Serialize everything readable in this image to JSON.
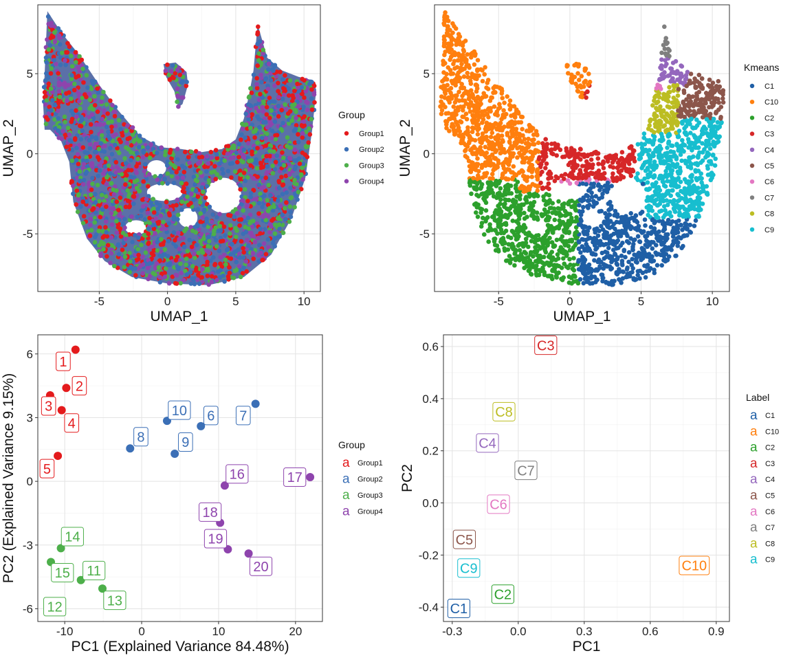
{
  "colors": {
    "group": {
      "Group1": "#E41A1C",
      "Group2": "#3B6FB6",
      "Group3": "#4DAF4A",
      "Group4": "#8E44AD"
    },
    "kmeans": {
      "C1": "#1F5FA6",
      "C10": "#FF7F0E",
      "C2": "#2CA02C",
      "C3": "#D62728",
      "C4": "#9467BD",
      "C5": "#8C564B",
      "C6": "#E377C2",
      "C7": "#7F7F7F",
      "C8": "#BCBD22",
      "C9": "#17BECF"
    }
  },
  "chart_data": [
    {
      "type": "scatter",
      "title": "",
      "xlabel": "UMAP_1",
      "ylabel": "UMAP_2",
      "xlim": [
        -9.5,
        11.2
      ],
      "ylim": [
        -8.6,
        9.3
      ],
      "x_ticks": [
        -5,
        0,
        5,
        10
      ],
      "y_ticks": [
        -5,
        0,
        5
      ],
      "grid": true,
      "legend": {
        "title": "Group",
        "entries": [
          "Group1",
          "Group2",
          "Group3",
          "Group4"
        ],
        "position": "right"
      },
      "density_regions": "UMAP embedding of single cells colored by sample group (dense overlapping points)"
    },
    {
      "type": "scatter",
      "title": "",
      "xlabel": "UMAP_1",
      "ylabel": "UMAP_2",
      "xlim": [
        -9.5,
        11.2
      ],
      "ylim": [
        -8.6,
        9.3
      ],
      "x_ticks": [
        -5,
        0,
        5,
        10
      ],
      "y_ticks": [
        -5,
        0,
        5
      ],
      "grid": true,
      "legend": {
        "title": "Kmeans",
        "entries": [
          "C1",
          "C10",
          "C2",
          "C3",
          "C4",
          "C5",
          "C6",
          "C7",
          "C8",
          "C9"
        ],
        "position": "right"
      }
    },
    {
      "type": "scatter",
      "title": "",
      "xlabel": "PC1 (Explained Variance 84.48%)",
      "ylabel": "PC2 (Explained Variance 9.15%)",
      "xlim": [
        -13.5,
        23.5
      ],
      "ylim": [
        -6.6,
        6.9
      ],
      "x_ticks": [
        -10,
        0,
        10,
        20
      ],
      "y_ticks": [
        -6,
        -3,
        0,
        3,
        6
      ],
      "grid": true,
      "legend": {
        "title": "Group",
        "entries": [
          "Group1",
          "Group2",
          "Group3",
          "Group4"
        ],
        "position": "right"
      },
      "points": [
        {
          "label": "1",
          "group": "Group1",
          "x": -8.6,
          "y": 6.2,
          "lx": -10.2,
          "ly": 5.65
        },
        {
          "label": "2",
          "group": "Group1",
          "x": -9.8,
          "y": 4.4,
          "lx": -8.1,
          "ly": 4.5
        },
        {
          "label": "3",
          "group": "Group1",
          "x": -11.9,
          "y": 4.05,
          "lx": -12.1,
          "ly": 3.55
        },
        {
          "label": "4",
          "group": "Group1",
          "x": -10.4,
          "y": 3.35,
          "lx": -9.1,
          "ly": 2.75
        },
        {
          "label": "5",
          "group": "Group1",
          "x": -10.9,
          "y": 1.2,
          "lx": -12.3,
          "ly": 0.6
        },
        {
          "label": "6",
          "group": "Group2",
          "x": 7.7,
          "y": 2.6,
          "lx": 9.0,
          "ly": 3.1
        },
        {
          "label": "7",
          "group": "Group2",
          "x": 14.8,
          "y": 3.65,
          "lx": 13.2,
          "ly": 3.1
        },
        {
          "label": "8",
          "group": "Group2",
          "x": -1.5,
          "y": 1.55,
          "lx": -0.1,
          "ly": 2.1
        },
        {
          "label": "9",
          "group": "Group2",
          "x": 4.3,
          "y": 1.3,
          "lx": 5.7,
          "ly": 1.85
        },
        {
          "label": "10",
          "group": "Group2",
          "x": 3.3,
          "y": 2.85,
          "lx": 4.9,
          "ly": 3.35
        },
        {
          "label": "11",
          "group": "Group3",
          "x": -7.9,
          "y": -4.65,
          "lx": -6.2,
          "ly": -4.2
        },
        {
          "label": "12",
          "group": "Group3",
          "x": -11.5,
          "y": -5.9,
          "lx": -11.3,
          "ly": -5.9
        },
        {
          "label": "13",
          "group": "Group3",
          "x": -5.1,
          "y": -5.05,
          "lx": -3.5,
          "ly": -5.6
        },
        {
          "label": "14",
          "group": "Group3",
          "x": -10.5,
          "y": -3.15,
          "lx": -9.0,
          "ly": -2.6
        },
        {
          "label": "15",
          "group": "Group3",
          "x": -11.8,
          "y": -3.8,
          "lx": -10.3,
          "ly": -4.3
        },
        {
          "label": "16",
          "group": "Group4",
          "x": 10.8,
          "y": -0.2,
          "lx": 12.4,
          "ly": 0.35
        },
        {
          "label": "17",
          "group": "Group4",
          "x": 21.9,
          "y": 0.2,
          "lx": 19.9,
          "ly": 0.2
        },
        {
          "label": "18",
          "group": "Group4",
          "x": 10.2,
          "y": -1.95,
          "lx": 8.9,
          "ly": -1.45
        },
        {
          "label": "19",
          "group": "Group4",
          "x": 11.2,
          "y": -3.2,
          "lx": 9.6,
          "ly": -2.7
        },
        {
          "label": "20",
          "group": "Group4",
          "x": 13.9,
          "y": -3.4,
          "lx": 15.5,
          "ly": -4.0
        }
      ]
    },
    {
      "type": "scatter",
      "title": "",
      "xlabel": "PC1",
      "ylabel": "PC2",
      "xlim": [
        -0.34,
        0.96
      ],
      "ylim": [
        -0.455,
        0.645
      ],
      "x_ticks": [
        "-0.3",
        "0.0",
        "0.3",
        "0.6",
        "0.9"
      ],
      "y_ticks": [
        "-0.4",
        "-0.2",
        "0.0",
        "0.2",
        "0.4",
        "0.6"
      ],
      "grid": true,
      "legend": {
        "title": "Label",
        "entries": [
          "C1",
          "C10",
          "C2",
          "C3",
          "C4",
          "C5",
          "C6",
          "C7",
          "C8",
          "C9"
        ],
        "position": "right"
      },
      "points": [
        {
          "label": "C3",
          "x": 0.125,
          "y": 0.605
        },
        {
          "label": "C8",
          "x": -0.065,
          "y": 0.35
        },
        {
          "label": "C4",
          "x": -0.14,
          "y": 0.23
        },
        {
          "label": "C7",
          "x": 0.035,
          "y": 0.125
        },
        {
          "label": "C6",
          "x": -0.09,
          "y": -0.005
        },
        {
          "label": "C5",
          "x": -0.245,
          "y": -0.14
        },
        {
          "label": "C9",
          "x": -0.225,
          "y": -0.25
        },
        {
          "label": "C2",
          "x": -0.07,
          "y": -0.35
        },
        {
          "label": "C10",
          "x": 0.8,
          "y": -0.24
        },
        {
          "label": "C1",
          "x": -0.27,
          "y": -0.405
        }
      ]
    }
  ]
}
